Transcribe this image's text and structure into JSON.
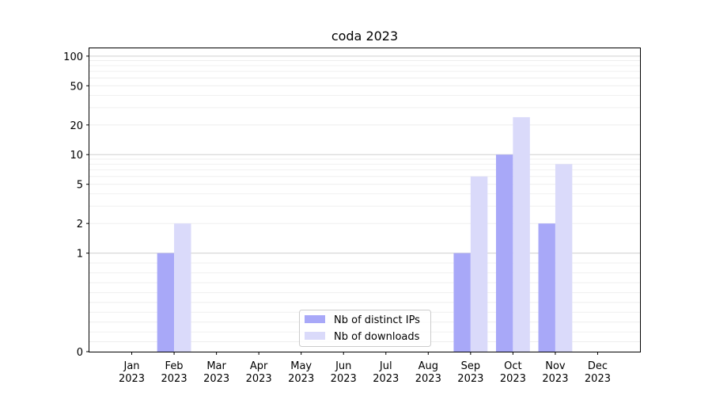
{
  "chart_data": {
    "type": "bar",
    "title": "coda 2023",
    "xlabel": "",
    "ylabel": "",
    "y_scale": "symlog",
    "ylim": [
      0,
      120
    ],
    "y_ticks": [
      0,
      1,
      2,
      5,
      10,
      20,
      50,
      100
    ],
    "y_tick_labels": [
      "0",
      "1",
      "2",
      "5",
      "10",
      "20",
      "50",
      "100"
    ],
    "categories": [
      "Jan\n2023",
      "Feb\n2023",
      "Mar\n2023",
      "Apr\n2023",
      "May\n2023",
      "Jun\n2023",
      "Jul\n2023",
      "Aug\n2023",
      "Sep\n2023",
      "Oct\n2023",
      "Nov\n2023",
      "Dec\n2023"
    ],
    "category_month": [
      "Jan",
      "Feb",
      "Mar",
      "Apr",
      "May",
      "Jun",
      "Jul",
      "Aug",
      "Sep",
      "Oct",
      "Nov",
      "Dec"
    ],
    "category_year": [
      "2023",
      "2023",
      "2023",
      "2023",
      "2023",
      "2023",
      "2023",
      "2023",
      "2023",
      "2023",
      "2023",
      "2023"
    ],
    "series": [
      {
        "name": "Nb of distinct IPs",
        "color": "#a8a8f8",
        "values": [
          0,
          1,
          0,
          0,
          0,
          0,
          0,
          0,
          1,
          10,
          2,
          0
        ]
      },
      {
        "name": "Nb of downloads",
        "color": "#dadafa",
        "values": [
          0,
          2,
          0,
          0,
          0,
          0,
          0,
          0,
          6,
          24,
          8,
          0
        ]
      }
    ],
    "grid": true,
    "legend_position": "lower-center"
  }
}
